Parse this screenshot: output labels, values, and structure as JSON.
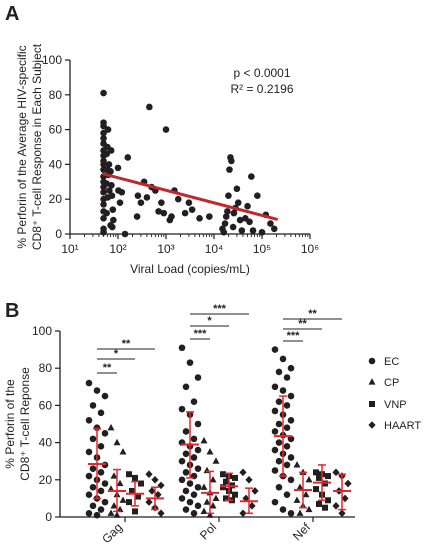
{
  "chart_data": [
    {
      "panel": "A",
      "type": "scatter",
      "x_scale": "log",
      "xlim": [
        10,
        1000000
      ],
      "ylim": [
        0,
        100
      ],
      "xlabel": "Viral Load (copies/mL)",
      "ylabel_lines": [
        "% Perforin of the Average HIV-specific",
        "CD8⁺ T-cell Response in Each Subject"
      ],
      "x_ticks": [
        10,
        100,
        1000,
        10000,
        100000,
        1000000
      ],
      "x_tick_labels": [
        "10¹",
        "10²",
        "10³",
        "10⁴",
        "10⁵",
        "10⁶"
      ],
      "y_ticks": [
        0,
        20,
        40,
        60,
        80,
        100
      ],
      "y_tick_labels": [
        "0",
        "20",
        "40",
        "60",
        "80",
        "100"
      ],
      "annotations": [
        "p < 0.0001",
        "R² = 0.2196"
      ],
      "regression_line": {
        "x": [
          50,
          200000
        ],
        "y": [
          34.5,
          8.5
        ],
        "color": "#c0282d"
      },
      "points": [
        [
          50,
          81
        ],
        [
          50,
          64
        ],
        [
          50,
          62
        ],
        [
          50,
          58
        ],
        [
          50,
          55
        ],
        [
          50,
          52
        ],
        [
          50,
          48
        ],
        [
          50,
          45
        ],
        [
          50,
          42
        ],
        [
          50,
          40
        ],
        [
          50,
          37
        ],
        [
          50,
          33
        ],
        [
          50,
          30
        ],
        [
          50,
          27
        ],
        [
          50,
          24
        ],
        [
          50,
          20
        ],
        [
          50,
          17
        ],
        [
          50,
          13
        ],
        [
          50,
          9
        ],
        [
          50,
          3
        ],
        [
          50,
          1
        ],
        [
          62,
          60
        ],
        [
          60,
          50
        ],
        [
          58,
          46
        ],
        [
          65,
          40
        ],
        [
          60,
          37
        ],
        [
          63,
          34
        ],
        [
          58,
          29
        ],
        [
          66,
          25
        ],
        [
          61,
          21
        ],
        [
          58,
          12
        ],
        [
          70,
          5
        ],
        [
          72,
          48
        ],
        [
          70,
          36
        ],
        [
          73,
          28
        ],
        [
          75,
          22
        ],
        [
          78,
          14
        ],
        [
          80,
          8
        ],
        [
          76,
          4
        ],
        [
          100,
          38
        ],
        [
          102,
          25
        ],
        [
          110,
          18
        ],
        [
          120,
          24
        ],
        [
          140,
          0
        ],
        [
          160,
          44
        ],
        [
          250,
          10
        ],
        [
          260,
          22
        ],
        [
          300,
          18
        ],
        [
          350,
          30
        ],
        [
          400,
          21
        ],
        [
          450,
          73
        ],
        [
          500,
          27
        ],
        [
          600,
          25
        ],
        [
          700,
          13
        ],
        [
          800,
          18
        ],
        [
          900,
          12
        ],
        [
          1000,
          60
        ],
        [
          1200,
          8
        ],
        [
          1300,
          10
        ],
        [
          1500,
          25
        ],
        [
          1800,
          20
        ],
        [
          2500,
          12
        ],
        [
          3000,
          18
        ],
        [
          3500,
          14
        ],
        [
          5000,
          9
        ],
        [
          8000,
          10
        ],
        [
          15000,
          3
        ],
        [
          16000,
          1
        ],
        [
          17000,
          6
        ],
        [
          18000,
          10
        ],
        [
          19000,
          13
        ],
        [
          20000,
          22
        ],
        [
          21000,
          37
        ],
        [
          22000,
          44
        ],
        [
          23000,
          42
        ],
        [
          25000,
          4
        ],
        [
          26000,
          12
        ],
        [
          28000,
          15
        ],
        [
          30000,
          26
        ],
        [
          32000,
          18
        ],
        [
          35000,
          8
        ],
        [
          38000,
          2
        ],
        [
          45000,
          9
        ],
        [
          50000,
          16
        ],
        [
          55000,
          7
        ],
        [
          60000,
          33
        ],
        [
          65000,
          2
        ],
        [
          80000,
          22
        ],
        [
          100000,
          1
        ],
        [
          120000,
          11
        ],
        [
          150000,
          6
        ],
        [
          180000,
          3
        ]
      ]
    },
    {
      "panel": "B",
      "type": "scatter",
      "ylabel_lines": [
        "% Perforin of the",
        "CD8⁺ T-cell Reponse"
      ],
      "ylim": [
        0,
        100
      ],
      "y_ticks": [
        0,
        20,
        40,
        60,
        80,
        100
      ],
      "y_tick_labels": [
        "0",
        "20",
        "40",
        "60",
        "80",
        "100"
      ],
      "categories": [
        "Gag",
        "Pol",
        "Nef"
      ],
      "groups": [
        "EC",
        "CP",
        "VNP",
        "HAART"
      ],
      "markers": [
        "circle",
        "triangle",
        "square",
        "diamond"
      ],
      "summary_color": "#e0282d",
      "summary": {
        "Gag": [
          [
            28.5,
            47.5,
            10
          ],
          [
            14,
            25.5,
            3
          ],
          [
            12.5,
            19,
            6
          ],
          [
            10,
            16,
            4
          ]
        ],
        "Pol": [
          [
            39,
            56.5,
            21
          ],
          [
            13,
            24.5,
            2
          ],
          [
            16.5,
            23.5,
            9
          ],
          [
            8.5,
            15.5,
            2
          ]
        ],
        "Nef": [
          [
            43.5,
            65,
            22
          ],
          [
            14.5,
            24,
            5
          ],
          [
            18.5,
            28,
            9
          ],
          [
            14,
            23,
            4
          ]
        ]
      },
      "points": {
        "Gag": [
          [
            72,
            68,
            65,
            60,
            56,
            52,
            48,
            45,
            42,
            38,
            35,
            32,
            28,
            26,
            24,
            22,
            20,
            18,
            16,
            14,
            12,
            10,
            8,
            6,
            4,
            2,
            1
          ],
          [
            48,
            40,
            35,
            22,
            18,
            15,
            12,
            9,
            6,
            4,
            2,
            1
          ],
          [
            23,
            21,
            18,
            14,
            11,
            8,
            3
          ],
          [
            23,
            20,
            17,
            14,
            12,
            8,
            5,
            2
          ]
        ],
        "Pol": [
          [
            91,
            83,
            75,
            70,
            62,
            58,
            55,
            50,
            46,
            42,
            40,
            38,
            36,
            34,
            32,
            30,
            28,
            26,
            24,
            22,
            20,
            18,
            16,
            14,
            12,
            10,
            8,
            6,
            4,
            2
          ],
          [
            41,
            35,
            30,
            25,
            20,
            16,
            13,
            10,
            8,
            6,
            3,
            1
          ],
          [
            23,
            22,
            21,
            19,
            17,
            16,
            14,
            12,
            10,
            9
          ],
          [
            24,
            20,
            14,
            10,
            6,
            2
          ]
        ],
        "Nef": [
          [
            90,
            85,
            80,
            78,
            75,
            70,
            68,
            65,
            62,
            60,
            57,
            55,
            52,
            50,
            48,
            46,
            44,
            42,
            40,
            38,
            36,
            34,
            32,
            30,
            28,
            25,
            22,
            20,
            16,
            12,
            8,
            4,
            2
          ],
          [
            28,
            24,
            20,
            16,
            12,
            9,
            6,
            4,
            2
          ],
          [
            24,
            23,
            22,
            21,
            18,
            15,
            12,
            9,
            7,
            5
          ],
          [
            24,
            22,
            18,
            14,
            10,
            6,
            2
          ]
        ]
      },
      "significance": [
        {
          "label": "**",
          "from": [
            "Gag",
            0
          ],
          "to": [
            "Gag",
            3
          ]
        },
        {
          "label": "*",
          "from": [
            "Gag",
            0
          ],
          "to": [
            "Gag",
            2
          ]
        },
        {
          "label": "**",
          "from": [
            "Gag",
            0
          ],
          "to": [
            "Gag",
            1
          ]
        },
        {
          "label": "***",
          "from": [
            "Pol",
            0
          ],
          "to": [
            "Pol",
            3
          ]
        },
        {
          "label": "*",
          "from": [
            "Pol",
            0
          ],
          "to": [
            "Pol",
            2
          ]
        },
        {
          "label": "***",
          "from": [
            "Pol",
            0
          ],
          "to": [
            "Pol",
            1
          ]
        },
        {
          "label": "**",
          "from": [
            "Nef",
            0
          ],
          "to": [
            "Nef",
            3
          ]
        },
        {
          "label": "**",
          "from": [
            "Nef",
            0
          ],
          "to": [
            "Nef",
            2
          ]
        },
        {
          "label": "***",
          "from": [
            "Nef",
            0
          ],
          "to": [
            "Nef",
            1
          ]
        }
      ]
    }
  ]
}
